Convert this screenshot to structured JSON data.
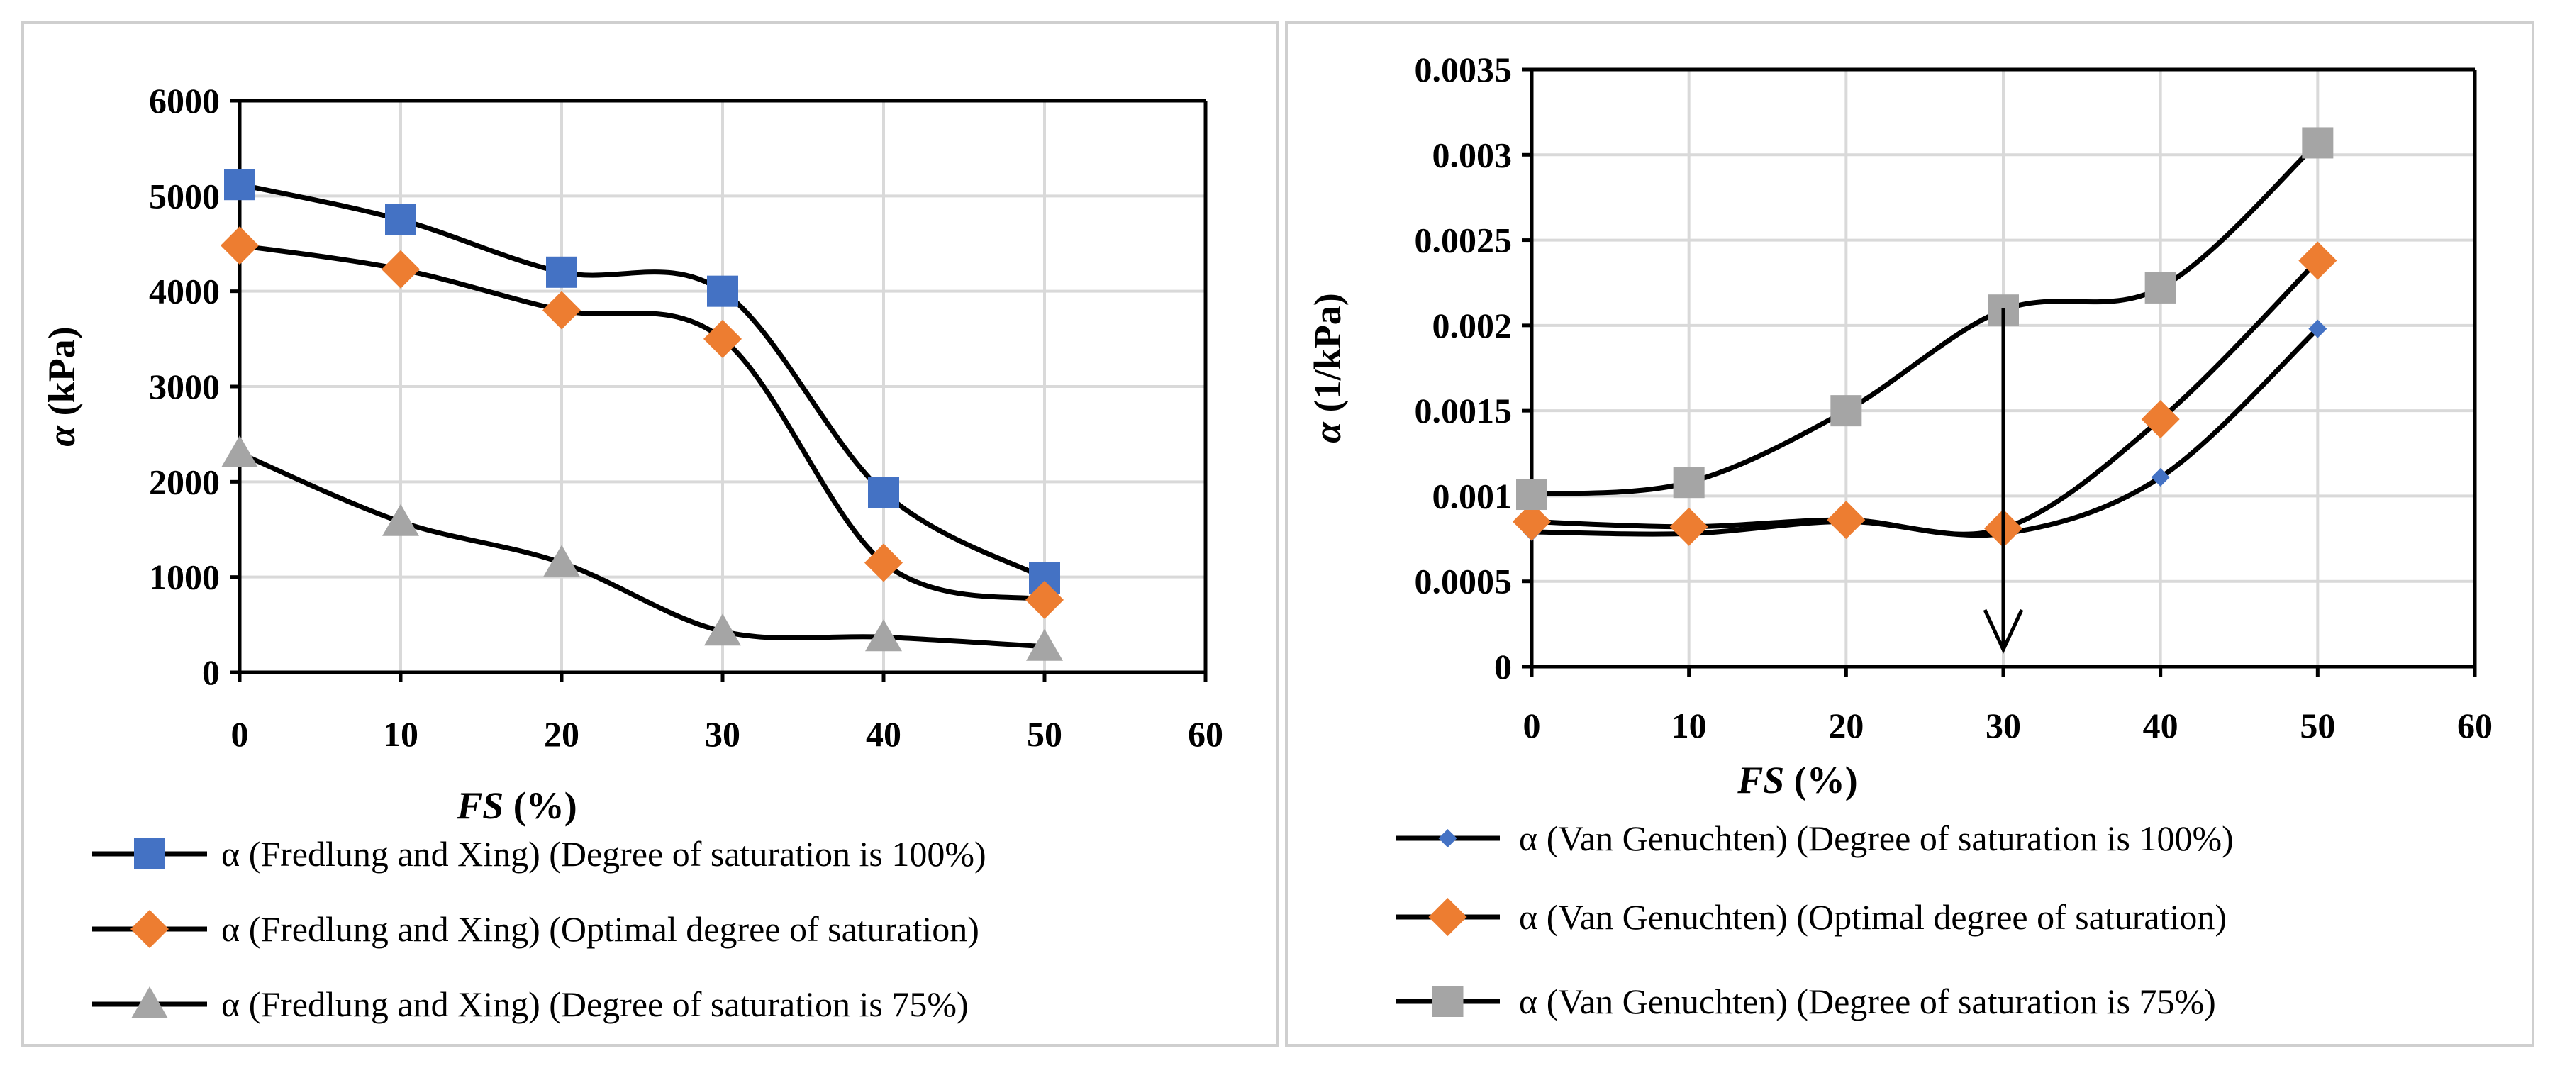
{
  "chart_data": [
    {
      "type": "line",
      "title": "",
      "xlabel_italic": "FS",
      "xlabel_rest": " (%)",
      "ylabel_symbol": "α",
      "ylabel_rest": " (kPa)",
      "xlim": [
        0,
        60
      ],
      "ylim": [
        0,
        6000
      ],
      "x_ticks": [
        "0",
        "10",
        "20",
        "30",
        "40",
        "50",
        "60"
      ],
      "y_ticks": [
        "0",
        "1000",
        "2000",
        "3000",
        "4000",
        "5000",
        "6000"
      ],
      "grid": true,
      "legend_position": "bottom",
      "series": [
        {
          "name": "α (Fredlung and Xing) (Degree of saturation is 100%)",
          "marker": "square",
          "color": "#4472C4",
          "x": [
            0,
            10,
            20,
            30,
            40,
            50
          ],
          "y": [
            5120,
            4750,
            4200,
            4000,
            1890,
            990
          ]
        },
        {
          "name": "α (Fredlung and Xing) (Optimal degree of saturation)",
          "marker": "diamond",
          "color": "#ED7D31",
          "x": [
            0,
            10,
            20,
            30,
            40,
            50
          ],
          "y": [
            4480,
            4230,
            3800,
            3500,
            1150,
            760
          ]
        },
        {
          "name": "α (Fredlung and Xing) (Degree of saturation is 75%)",
          "marker": "triangle",
          "color": "#A5A5A5",
          "x": [
            0,
            10,
            20,
            30,
            40,
            50
          ],
          "y": [
            2300,
            1580,
            1150,
            430,
            370,
            270
          ]
        }
      ]
    },
    {
      "type": "line",
      "title": "",
      "xlabel_italic": "FS",
      "xlabel_rest": " (%)",
      "ylabel_symbol": "α",
      "ylabel_rest": " (1/kPa)",
      "xlim": [
        0,
        60
      ],
      "ylim": [
        0,
        0.0035
      ],
      "x_ticks": [
        "0",
        "10",
        "20",
        "30",
        "40",
        "50",
        "60"
      ],
      "y_ticks": [
        "0",
        "0.0005",
        "0.001",
        "0.0015",
        "0.002",
        "0.0025",
        "0.003",
        "0.0035"
      ],
      "grid": true,
      "legend_position": "bottom",
      "arrow_annotation": {
        "x": 30,
        "y_from": 0.0021,
        "y_to": 0.0001
      },
      "series": [
        {
          "name": "α (Van Genuchten) (Degree of saturation is 100%)",
          "marker": "small-diamond",
          "color": "#4472C4",
          "x": [
            0,
            10,
            20,
            30,
            40,
            50
          ],
          "y": [
            0.00079,
            0.00078,
            0.00085,
            0.00078,
            0.00111,
            0.00198
          ]
        },
        {
          "name": "α (Van Genuchten) (Optimal degree of saturation)",
          "marker": "diamond",
          "color": "#ED7D31",
          "x": [
            0,
            10,
            20,
            30,
            40,
            50
          ],
          "y": [
            0.00085,
            0.00082,
            0.00086,
            0.00081,
            0.00145,
            0.00238
          ]
        },
        {
          "name": "α (Van Genuchten) (Degree of saturation is 75%)",
          "marker": "square",
          "color": "#A5A5A5",
          "x": [
            0,
            10,
            20,
            30,
            40,
            50
          ],
          "y": [
            0.00101,
            0.00108,
            0.0015,
            0.00209,
            0.00222,
            0.00307
          ]
        }
      ]
    }
  ]
}
